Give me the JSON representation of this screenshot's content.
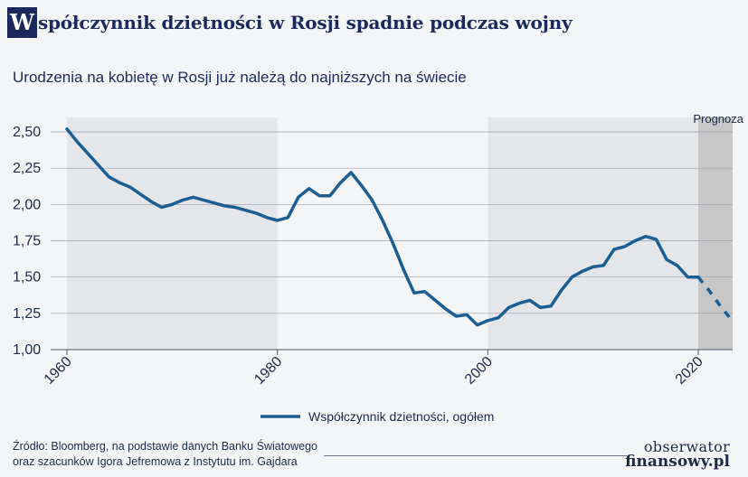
{
  "header": {
    "title_initial": "W",
    "title_rest": "spółczynnik dzietności w Rosji spadnie podczas wojny",
    "subtitle": "Urodzenia na kobietę w Rosji już należą do najniższych na świecie"
  },
  "footer": {
    "source_line1": "Źródło: Bloomberg, na podstawie danych Banku Światowego",
    "source_line2": "oraz szacunków Igora Jefremowa z Instytutu im. Gajdara",
    "brand_line1": "obserwator",
    "brand_line2": "finansowy.pl"
  },
  "colors": {
    "line": "#1a5e93",
    "shade": "#e4e6ea",
    "forecast_shade": "#c7c7c7",
    "grid": "#9aa0a8",
    "text": "#1c2a4a"
  },
  "chart_data": {
    "type": "line",
    "title": "Współczynnik dzietności w Rosji spadnie podczas wojny",
    "subtitle": "Urodzenia na kobietę w Rosji już należą do najniższych na świecie",
    "xlabel": "",
    "ylabel": "",
    "xlim": [
      1960,
      2023
    ],
    "ylim": [
      1.0,
      2.5
    ],
    "yticks": [
      1.0,
      1.25,
      1.5,
      1.75,
      2.0,
      2.25,
      2.5
    ],
    "ytick_labels": [
      "1,00",
      "1,25",
      "1,50",
      "1,75",
      "2,00",
      "2,25",
      "2,50"
    ],
    "xticks": [
      1960,
      1980,
      2000,
      2020
    ],
    "xtick_labels": [
      "1960",
      "1980",
      "2000",
      "2020"
    ],
    "grid": "horizontal",
    "shaded_periods": [
      [
        1960,
        1980
      ],
      [
        2000,
        2020
      ]
    ],
    "forecast_period": [
      2020,
      2023
    ],
    "forecast_label": "Prognoza",
    "legend_position": "bottom-center",
    "series": [
      {
        "name": "Współczynnik dzietności, ogółem",
        "x": [
          1960,
          1961,
          1962,
          1963,
          1964,
          1965,
          1966,
          1967,
          1968,
          1969,
          1970,
          1971,
          1972,
          1973,
          1974,
          1975,
          1976,
          1977,
          1978,
          1979,
          1980,
          1981,
          1982,
          1983,
          1984,
          1985,
          1986,
          1987,
          1988,
          1989,
          1990,
          1991,
          1992,
          1993,
          1994,
          1995,
          1996,
          1997,
          1998,
          1999,
          2000,
          2001,
          2002,
          2003,
          2004,
          2005,
          2006,
          2007,
          2008,
          2009,
          2010,
          2011,
          2012,
          2013,
          2014,
          2015,
          2016,
          2017,
          2018,
          2019,
          2020
        ],
        "values": [
          2.52,
          2.43,
          2.35,
          2.27,
          2.19,
          2.15,
          2.12,
          2.07,
          2.02,
          1.98,
          2.0,
          2.03,
          2.05,
          2.03,
          2.01,
          1.99,
          1.98,
          1.96,
          1.94,
          1.91,
          1.89,
          1.91,
          2.05,
          2.11,
          2.06,
          2.06,
          2.15,
          2.22,
          2.13,
          2.03,
          1.89,
          1.73,
          1.55,
          1.39,
          1.4,
          1.34,
          1.28,
          1.23,
          1.24,
          1.17,
          1.2,
          1.22,
          1.29,
          1.32,
          1.34,
          1.29,
          1.3,
          1.41,
          1.5,
          1.54,
          1.57,
          1.58,
          1.69,
          1.71,
          1.75,
          1.78,
          1.76,
          1.62,
          1.58,
          1.5,
          1.5
        ]
      },
      {
        "name": "Prognoza",
        "dashed": true,
        "x": [
          2020,
          2021,
          2022,
          2023
        ],
        "values": [
          1.5,
          1.41,
          1.31,
          1.22
        ]
      }
    ]
  }
}
